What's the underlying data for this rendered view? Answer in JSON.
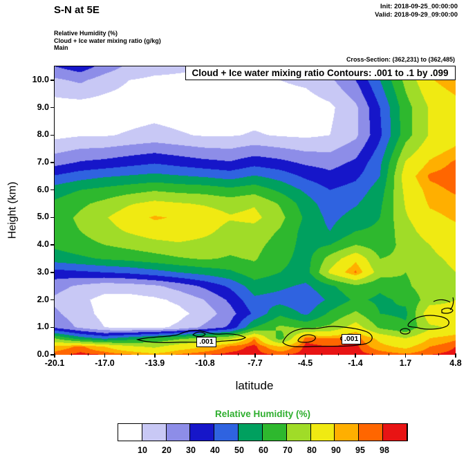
{
  "header": {
    "title": "S-N at 5E",
    "init": "Init: 2018-09-25_00:00:00",
    "valid": "Valid: 2018-09-29_09:00:00",
    "fields": [
      "Relative Humidity  (%)",
      "Cloud + Ice water mixing ratio  (g/kg)",
      "Main"
    ],
    "cross_section": "Cross-Section: (362,231) to (362,485)"
  },
  "colorbar": {
    "title": "Relative Humidity  (%)",
    "title_color": "#2eae2e",
    "labels": [
      "10",
      "20",
      "30",
      "40",
      "50",
      "60",
      "70",
      "80",
      "90",
      "95",
      "98"
    ]
  },
  "chart_data": {
    "type": "heatmap",
    "subtype": "filled-contour-vertical-cross-section",
    "title": "S-N at 5E",
    "contour_note": "Cloud + Ice water mixing ratio Contours: .001 to .1 by .099",
    "xlabel": "latitude",
    "ylabel": "Height (km)",
    "xlim": [
      -20.1,
      4.8
    ],
    "zlim": [
      0,
      10.5
    ],
    "x_ticks": [
      "-20.1",
      "-17.0",
      "-13.9",
      "-10.8",
      "-7.7",
      "-4.5",
      "-1.4",
      "1.7",
      "4.8"
    ],
    "y_ticks": [
      "0.0",
      "1.0",
      "2.0",
      "3.0",
      "4.0",
      "5.0",
      "6.0",
      "7.0",
      "8.0",
      "9.0",
      "10.0"
    ],
    "legend_position": "bottom",
    "levels": [
      10,
      20,
      30,
      40,
      50,
      60,
      70,
      80,
      90,
      95,
      98
    ],
    "colors": [
      "#ffffff",
      "#c8c8f5",
      "#8d8de8",
      "#1616c9",
      "#2f63e0",
      "#00a05f",
      "#2eb82e",
      "#a0dc28",
      "#f0ea12",
      "#ffaf00",
      "#ff6600",
      "#e81414"
    ],
    "x": [
      -20.1,
      -18.5,
      -17.0,
      -15.5,
      -13.9,
      -12.4,
      -10.8,
      -9.2,
      -7.7,
      -6.1,
      -4.5,
      -3.0,
      -1.4,
      0.1,
      1.7,
      3.2,
      4.8
    ],
    "z": [
      0,
      0.3,
      0.6,
      1.0,
      1.5,
      2.0,
      2.5,
      3.0,
      3.5,
      4.0,
      4.5,
      5.0,
      5.5,
      6.0,
      6.5,
      7.0,
      8.0,
      9.0,
      10.0,
      10.5
    ],
    "rh_percent": [
      [
        97,
        99,
        98,
        96,
        92,
        96,
        98,
        99,
        99,
        98,
        99,
        99,
        99,
        98,
        96,
        98,
        99
      ],
      [
        92,
        96,
        90,
        82,
        78,
        85,
        90,
        96,
        99,
        90,
        99,
        98,
        99,
        92,
        88,
        95,
        98
      ],
      [
        70,
        55,
        48,
        55,
        62,
        68,
        72,
        78,
        95,
        65,
        97,
        95,
        97,
        88,
        80,
        90,
        94
      ],
      [
        28,
        18,
        10,
        7,
        7,
        12,
        22,
        32,
        60,
        72,
        68,
        72,
        85,
        68,
        62,
        78,
        82
      ],
      [
        22,
        14,
        7,
        5,
        5,
        7,
        14,
        26,
        42,
        58,
        48,
        62,
        72,
        60,
        58,
        88,
        85
      ],
      [
        18,
        12,
        7,
        6,
        8,
        12,
        20,
        32,
        48,
        46,
        42,
        52,
        62,
        58,
        62,
        75,
        80
      ],
      [
        24,
        18,
        14,
        15,
        18,
        24,
        32,
        42,
        55,
        52,
        48,
        58,
        68,
        62,
        68,
        76,
        80
      ],
      [
        36,
        38,
        40,
        42,
        46,
        50,
        54,
        58,
        66,
        60,
        56,
        82,
        96,
        75,
        70,
        76,
        80
      ],
      [
        55,
        58,
        61,
        63,
        66,
        69,
        71,
        69,
        71,
        63,
        56,
        74,
        88,
        70,
        72,
        78,
        82
      ],
      [
        62,
        66,
        70,
        73,
        76,
        78,
        76,
        73,
        73,
        66,
        56,
        60,
        70,
        65,
        73,
        80,
        85
      ],
      [
        65,
        70,
        76,
        81,
        86,
        88,
        83,
        76,
        76,
        69,
        56,
        50,
        60,
        62,
        76,
        85,
        88
      ],
      [
        65,
        72,
        79,
        86,
        91,
        89,
        86,
        81,
        83,
        73,
        58,
        47,
        54,
        60,
        79,
        88,
        91
      ],
      [
        62,
        68,
        73,
        79,
        83,
        81,
        79,
        76,
        79,
        69,
        55,
        44,
        49,
        58,
        81,
        91,
        93
      ],
      [
        55,
        60,
        63,
        66,
        69,
        67,
        66,
        63,
        66,
        58,
        48,
        40,
        44,
        55,
        83,
        93,
        96
      ],
      [
        41,
        46,
        49,
        51,
        53,
        51,
        49,
        46,
        51,
        46,
        38,
        33,
        38,
        50,
        86,
        96,
        98
      ],
      [
        26,
        31,
        33,
        36,
        39,
        36,
        33,
        31,
        36,
        33,
        28,
        26,
        32,
        48,
        81,
        91,
        96
      ],
      [
        7,
        9,
        9,
        11,
        13,
        11,
        9,
        9,
        11,
        9,
        8,
        10,
        18,
        38,
        66,
        81,
        86
      ],
      [
        5,
        5,
        5,
        5,
        6,
        5,
        5,
        5,
        5,
        5,
        5,
        8,
        18,
        40,
        66,
        81,
        86
      ],
      [
        18,
        22,
        15,
        10,
        8,
        8,
        6,
        6,
        8,
        10,
        12,
        18,
        30,
        50,
        73,
        89,
        95
      ],
      [
        30,
        36,
        26,
        18,
        14,
        12,
        12,
        12,
        14,
        16,
        20,
        28,
        40,
        56,
        76,
        91,
        96
      ]
    ],
    "overlay_contours": {
      "variable": "Cloud + Ice water mixing ratio (g/kg)",
      "levels": [
        0.001,
        0.1
      ],
      "step": 0.099
    },
    "overlay_contour_labels": [
      {
        "text": ".001",
        "lat": -10.6,
        "z": 0.45
      },
      {
        "text": ".001",
        "lat": -1.6,
        "z": 0.55
      }
    ]
  }
}
